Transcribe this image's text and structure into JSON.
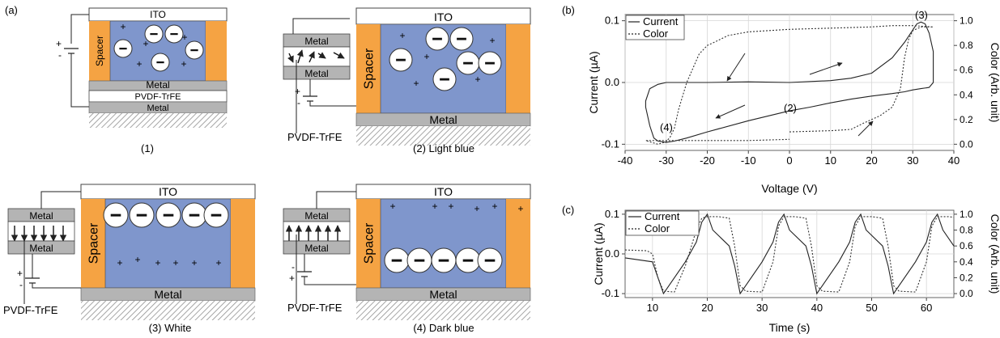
{
  "panel_labels": {
    "a": "(a)",
    "b": "(b)",
    "c": "(c)"
  },
  "device": {
    "ito": "ITO",
    "spacer": "Spacer",
    "metal": "Metal",
    "pvdf": "PVDF-TrFE",
    "plus": "+",
    "minus": "-"
  },
  "captions": {
    "s1": "(1)",
    "s2": "(2) Light blue",
    "s3": "(3) White",
    "s4": "(4) Dark blue"
  },
  "colors": {
    "electrolyte": "#7F96CC",
    "spacer": "#F5A343",
    "metal": "#B4B4B4",
    "substrate_hatch": "#9C9C9C"
  },
  "chart_data": [
    {
      "type": "line",
      "panel": "(b)",
      "xlabel": "Voltage (V)",
      "ylabel": "Current (µA)",
      "y2label": "Color (Arb. unit)",
      "xlim": [
        -40,
        40
      ],
      "ylim": [
        -0.11,
        0.11
      ],
      "y2lim": [
        -0.05,
        1.05
      ],
      "xticks": [
        "-40",
        "-30",
        "-20",
        "-10",
        "0",
        "10",
        "20",
        "30",
        "40"
      ],
      "yticks": [
        "0.1",
        "0.0",
        "-0.1"
      ],
      "y2ticks": [
        "1.0",
        "0.8",
        "0.6",
        "0.4",
        "0.2",
        "0.0"
      ],
      "grid": true,
      "legend": "top-left",
      "annotations": [
        "(2)",
        "(3)",
        "(4)"
      ],
      "series": [
        {
          "name": "Current",
          "style": "solid",
          "axis": "left",
          "x": [
            0,
            10,
            15,
            20,
            25,
            28,
            30,
            31,
            32,
            33,
            34,
            35,
            35,
            34,
            32,
            30,
            28,
            25,
            20,
            15,
            10,
            5,
            0,
            -10,
            -20,
            -25,
            -28,
            -30,
            -32,
            -33,
            -34,
            -35,
            -35,
            -34,
            -32,
            -30,
            -25,
            -20,
            -10,
            0
          ],
          "y": [
            0.0,
            0.003,
            0.007,
            0.015,
            0.04,
            0.065,
            0.085,
            0.095,
            0.098,
            0.095,
            0.08,
            0.05,
            0.0,
            -0.008,
            -0.01,
            -0.012,
            -0.015,
            -0.018,
            -0.022,
            -0.027,
            -0.033,
            -0.04,
            -0.046,
            -0.062,
            -0.08,
            -0.09,
            -0.095,
            -0.097,
            -0.095,
            -0.09,
            -0.07,
            -0.04,
            -0.03,
            -0.01,
            -0.003,
            0.0,
            0.0,
            0.0,
            0.001,
            0.0
          ]
        },
        {
          "name": "Color",
          "style": "dotted",
          "axis": "right",
          "x": [
            0,
            10,
            15,
            18,
            20,
            22,
            25,
            27,
            28,
            29,
            30,
            32,
            35,
            30,
            25,
            20,
            10,
            0,
            -10,
            -15,
            -18,
            -20,
            -22,
            -25,
            -27,
            -28,
            -29,
            -30,
            -31,
            -32,
            -35,
            -30,
            -20,
            -10,
            0
          ],
          "y": [
            0.1,
            0.11,
            0.12,
            0.17,
            0.2,
            0.23,
            0.3,
            0.45,
            0.7,
            0.85,
            0.92,
            0.95,
            0.95,
            0.96,
            0.96,
            0.95,
            0.94,
            0.93,
            0.91,
            0.88,
            0.83,
            0.8,
            0.73,
            0.5,
            0.28,
            0.13,
            0.06,
            0.02,
            0.01,
            0.0,
            0.03,
            0.03,
            0.03,
            0.03,
            0.04
          ]
        }
      ]
    },
    {
      "type": "line",
      "panel": "(c)",
      "xlabel": "Time (s)",
      "ylabel": "Current (µA)",
      "y2label": "Color (Arb. unit)",
      "xlim": [
        5,
        65
      ],
      "ylim": [
        -0.11,
        0.11
      ],
      "y2lim": [
        -0.05,
        1.05
      ],
      "xticks": [
        "10",
        "20",
        "30",
        "40",
        "50",
        "60"
      ],
      "yticks": [
        "0.1",
        "0.0",
        "-0.1"
      ],
      "y2ticks": [
        "1.0",
        "0.8",
        "0.6",
        "0.4",
        "0.2",
        "0.0"
      ],
      "grid": true,
      "legend": "top-left",
      "period_s": 14,
      "series": [
        {
          "name": "Current",
          "style": "solid",
          "axis": "left",
          "x": [
            5,
            10,
            11,
            12,
            13,
            16,
            18,
            19,
            20,
            21,
            24,
            25,
            26,
            27,
            30,
            32,
            33,
            34,
            35,
            38,
            39,
            40,
            41,
            44,
            46,
            47,
            48,
            49,
            52,
            53,
            54,
            55,
            58,
            60,
            61,
            62,
            63,
            65
          ],
          "y": [
            -0.01,
            -0.02,
            -0.06,
            -0.1,
            -0.08,
            -0.02,
            0.03,
            0.08,
            0.1,
            0.06,
            0.02,
            -0.03,
            -0.1,
            -0.08,
            -0.02,
            0.03,
            0.08,
            0.1,
            0.06,
            0.02,
            -0.03,
            -0.1,
            -0.08,
            -0.02,
            0.03,
            0.08,
            0.1,
            0.06,
            0.02,
            -0.03,
            -0.1,
            -0.08,
            -0.02,
            0.03,
            0.08,
            0.1,
            0.06,
            0.02
          ]
        },
        {
          "name": "Color",
          "style": "dotted",
          "axis": "right",
          "x": [
            5,
            9,
            10,
            11,
            12,
            14,
            16,
            18,
            19,
            20,
            22,
            24,
            25,
            26,
            27,
            30,
            32,
            33,
            34,
            36,
            38,
            39,
            40,
            41,
            44,
            46,
            47,
            48,
            50,
            52,
            53,
            54,
            55,
            58,
            60,
            61,
            62,
            64,
            65
          ],
          "y": [
            0.55,
            0.54,
            0.5,
            0.2,
            0.03,
            0.02,
            0.35,
            0.8,
            0.95,
            0.97,
            0.97,
            0.95,
            0.6,
            0.1,
            0.03,
            0.02,
            0.4,
            0.85,
            0.97,
            0.97,
            0.95,
            0.6,
            0.1,
            0.03,
            0.02,
            0.4,
            0.85,
            0.97,
            0.97,
            0.95,
            0.6,
            0.1,
            0.03,
            0.02,
            0.4,
            0.85,
            0.97,
            0.97,
            0.96
          ]
        }
      ]
    }
  ]
}
